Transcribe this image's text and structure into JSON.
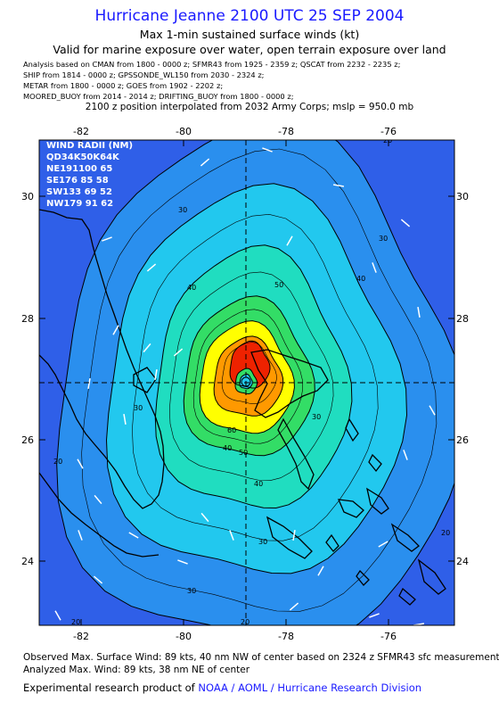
{
  "title": "Hurricane Jeanne 2100 UTC 25 SEP 2004",
  "subtitle1": "Max 1-min sustained surface winds (kt)",
  "subtitle2": "Valid for marine exposure over water, open terrain exposure over land",
  "sources": [
    "Analysis based on  CMAN from 1800 - 0000 z;  SFMR43 from 1925 - 2359 z;  QSCAT from 2232 - 2235 z;",
    "SHIP from 1814 - 0000 z;  GPSSONDE_WL150 from 2030 - 2324 z;",
    "METAR from 1800 - 0000 z;  GOES from 1902 - 2202 z;",
    "MOORED_BUOY from 2014 - 2014 z;  DRIFTING_BUOY from 1800 - 0000 z;"
  ],
  "interp_note": "2100 z position interpolated from 2032 Army Corps; mslp = 950.0 mb",
  "lon_ticks": [
    "-82",
    "-80",
    "-78",
    "-76"
  ],
  "lat_ticks": [
    "30",
    "28",
    "26",
    "24"
  ],
  "wind_radii": {
    "header": "WIND RADII (NM)",
    "cols": "QD34K50K64K",
    "rows": [
      "NE191100 65",
      "SE176 85 58",
      "SW133 69 52",
      "NW179 91 62"
    ]
  },
  "contour_labels": [
    "20",
    "20",
    "20",
    "20",
    "20",
    "30",
    "30",
    "30",
    "30",
    "30",
    "30",
    "40",
    "40",
    "40",
    "40",
    "50",
    "50",
    "60"
  ],
  "observed": "Observed Max. Surface Wind: 89 kts, 40 nm NW of center based on 2324 z SFMR43 sfc measurement",
  "analyzed": "Analyzed Max. Wind: 89 kts, 38 nm NE of center",
  "credit_prefix": "Experimental research product of",
  "credit_link": "NOAA / AOML / Hurricane Research Division",
  "colors": {
    "title": "#1a1aff",
    "band_20": "#2f5fe8",
    "band_30": "#2a8fee",
    "band_40": "#22c8ee",
    "band_50": "#20ddc0",
    "band_60": "#33dd66",
    "band_70": "#ffff00",
    "band_80": "#ff9900",
    "band_89": "#ee2200"
  }
}
